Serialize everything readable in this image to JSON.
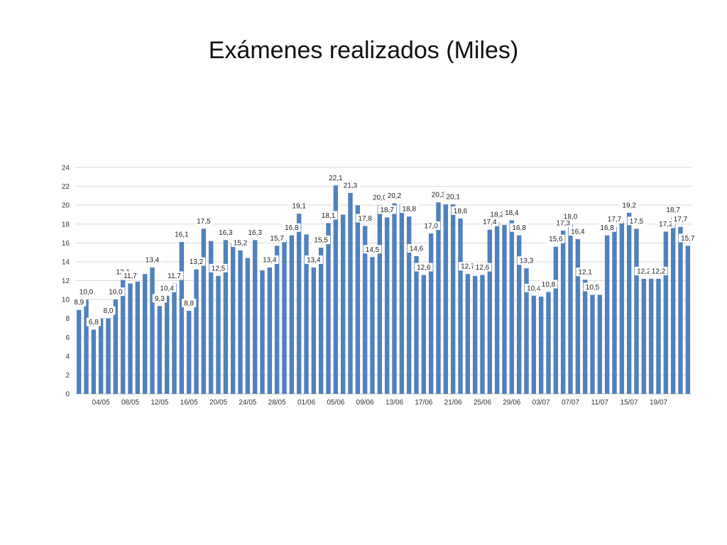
{
  "chart_data": {
    "type": "bar",
    "title": "Exámenes realizados (Miles)",
    "color": "#4F81BD",
    "ylim": [
      0,
      24
    ],
    "yticks": [
      0,
      2,
      4,
      6,
      8,
      10,
      12,
      14,
      16,
      18,
      20,
      22,
      24
    ],
    "grid": true,
    "legend": "none",
    "xtick_labels": [
      "04/05",
      "08/05",
      "12/05",
      "16/05",
      "20/05",
      "24/05",
      "28/05",
      "01/06",
      "05/06",
      "09/06",
      "13/06",
      "17/06",
      "21/06",
      "25/06",
      "29/06",
      "03/07",
      "07/07",
      "11/07",
      "15/07",
      "19/07"
    ],
    "xtick_indices": [
      3,
      7,
      11,
      15,
      19,
      23,
      27,
      31,
      35,
      39,
      43,
      47,
      51,
      55,
      59,
      63,
      67,
      71,
      75,
      79
    ],
    "values": [
      8.9,
      10.0,
      6.8,
      8.0,
      8.0,
      10.0,
      12.1,
      11.7,
      11.9,
      12.7,
      13.4,
      9.3,
      10.4,
      11.7,
      16.1,
      8.8,
      13.2,
      17.5,
      16.2,
      12.5,
      16.3,
      16.0,
      15.2,
      14.4,
      16.3,
      13.1,
      13.4,
      15.7,
      16.3,
      16.8,
      19.1,
      16.9,
      13.4,
      15.5,
      18.1,
      22.1,
      19.0,
      21.3,
      20.0,
      17.8,
      14.5,
      20.0,
      18.7,
      20.2,
      20.1,
      18.8,
      14.6,
      12.6,
      17.0,
      20.3,
      20.1,
      20.1,
      18.6,
      12.7,
      12.5,
      12.6,
      17.4,
      18.2,
      17.9,
      18.4,
      16.8,
      13.3,
      10.4,
      10.3,
      10.8,
      15.6,
      17.3,
      18.0,
      16.4,
      12.1,
      10.5,
      10.5,
      16.8,
      17.7,
      18.3,
      19.2,
      17.5,
      12.2,
      12.2,
      12.2,
      17.2,
      18.7,
      17.7,
      15.7
    ],
    "data_labels": [
      "8,9",
      "10,0",
      "6,8",
      "",
      "8,0",
      "10,0",
      "12,1",
      "11,7",
      "",
      "",
      "13,4",
      "9,3",
      "10,4",
      "11,7",
      "16,1",
      "8,8",
      "13,2",
      "17,5",
      "",
      "12,5",
      "16,3",
      "",
      "15,2",
      "",
      "16,3",
      "",
      "13,4",
      "15,7",
      "",
      "16,8",
      "19,1",
      "",
      "13,4",
      "15,5",
      "18,1",
      "22,1",
      "",
      "21,3",
      "",
      "17,8",
      "14,5",
      "20,0",
      "18,7",
      "20,2",
      "",
      "18,8",
      "14,6",
      "12,6",
      "17,0",
      "20,3",
      "",
      "20,1",
      "18,6",
      "12,7",
      "",
      "12,6",
      "17,4",
      "18,2",
      "",
      "18,4",
      "16,8",
      "13,3",
      "10,4",
      "",
      "10,8",
      "15,6",
      "17,3",
      "18,0",
      "16,4",
      "12,1",
      "10,5",
      "",
      "16,8",
      "17,7",
      "",
      "19,2",
      "17,5",
      "12,2",
      "",
      "12,2",
      "17,2",
      "18,7",
      "17,7",
      "15,7"
    ]
  }
}
